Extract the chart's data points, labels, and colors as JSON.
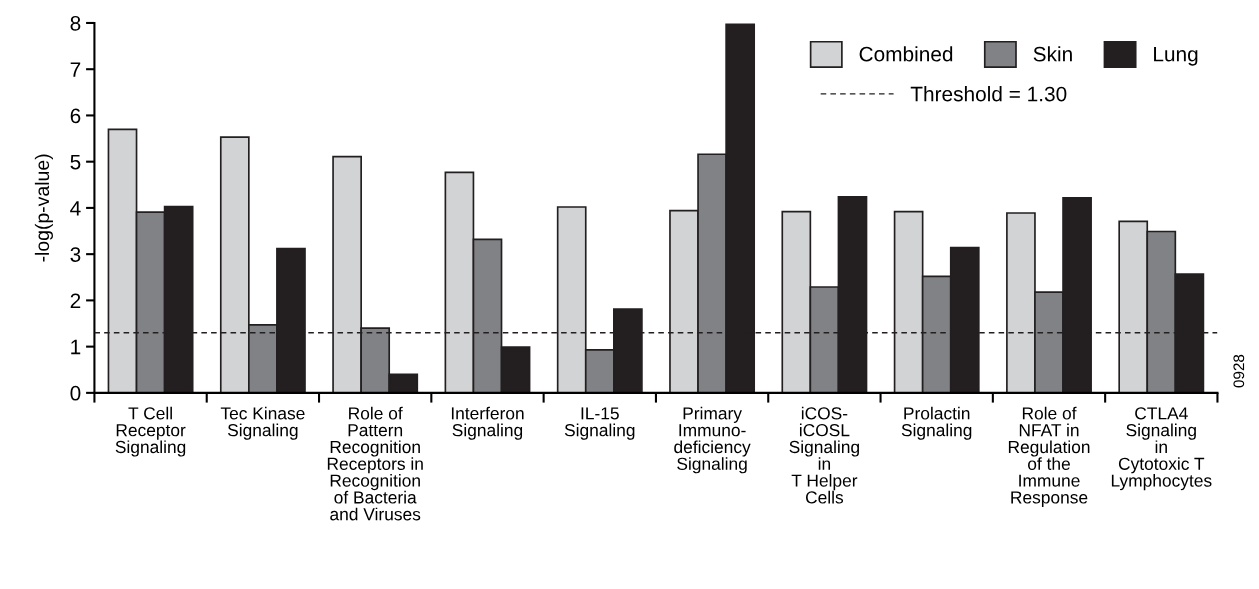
{
  "chart_data": {
    "type": "bar",
    "ylabel": "-log(p-value)",
    "categories": [
      "T Cell\nReceptor\nSignaling",
      "Tec Kinase\nSignaling",
      "Role of\nPattern\nRecognition\nReceptors in\nRecognition\nof Bacteria\nand Viruses",
      "Interferon\nSignaling",
      "IL-15\nSignaling",
      "Primary\nImmuno-\ndeficiency\nSignaling",
      "iCOS-\niCOSL\nSignaling\nin\nT Helper\nCells",
      "Prolactin\nSignaling",
      "Role of\nNFAT in\nRegulation\nof the\nImmune\nResponse",
      "CTLA4\nSignaling\nin\nCytotoxic T\nLymphocytes"
    ],
    "series": [
      {
        "name": "Combined",
        "color": "#d1d3d4",
        "values": [
          5.7,
          5.53,
          5.11,
          4.77,
          4.02,
          3.94,
          3.92,
          3.92,
          3.89,
          3.71
        ]
      },
      {
        "name": "Skin",
        "color": "#808285",
        "values": [
          3.91,
          1.47,
          1.4,
          3.32,
          0.93,
          5.16,
          2.29,
          2.52,
          2.18,
          3.49
        ]
      },
      {
        "name": "Lung",
        "color": "#231f20",
        "values": [
          4.03,
          3.12,
          0.4,
          0.99,
          1.81,
          7.97,
          4.24,
          3.14,
          4.22,
          2.57
        ]
      }
    ],
    "ylim": [
      0,
      8
    ],
    "yticks": [
      0,
      1,
      2,
      3,
      4,
      5,
      6,
      7,
      8
    ],
    "ref_lines": [
      {
        "axis": "y",
        "value": 1.3,
        "label": "Threshold = 1.30",
        "color": "#231f20",
        "line_style": "dashed"
      }
    ],
    "annotations": [
      "0928"
    ],
    "legend": "top right",
    "grid": false
  }
}
